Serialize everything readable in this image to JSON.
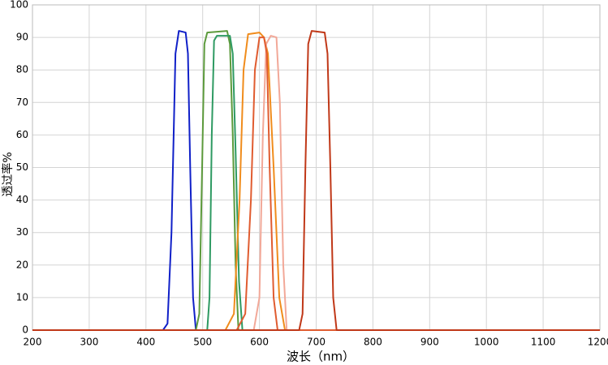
{
  "chart_data": {
    "type": "line",
    "x_label": "波长（nm）",
    "y_label": "透过率%",
    "xlim": [
      200,
      1200
    ],
    "xticks": [
      200,
      300,
      400,
      500,
      600,
      700,
      800,
      900,
      1000,
      1100,
      1200
    ],
    "ylim": [
      0,
      100
    ],
    "yticks": [
      0,
      10,
      20,
      30,
      40,
      50,
      60,
      70,
      80,
      90,
      100
    ],
    "grid": true,
    "series": [
      {
        "color": "#1020c8",
        "x": [
          200,
          430,
          438,
          445,
          452,
          458,
          470,
          474,
          478,
          483,
          488,
          1200
        ],
        "values": [
          0,
          0,
          2,
          30,
          85,
          92,
          91.5,
          85,
          50,
          10,
          0,
          0
        ]
      },
      {
        "color": "#5c9a3c",
        "x": [
          200,
          488,
          494,
          499,
          503,
          508,
          543,
          548,
          553,
          558,
          563,
          1200
        ],
        "values": [
          0,
          0,
          5,
          50,
          88,
          91.5,
          92,
          88,
          60,
          20,
          0,
          0
        ]
      },
      {
        "color": "#2e9a62",
        "x": [
          200,
          508,
          512,
          516,
          520,
          525,
          548,
          553,
          558,
          564,
          570,
          1200
        ],
        "values": [
          0,
          0,
          10,
          60,
          89,
          90.5,
          90.5,
          85,
          55,
          15,
          0,
          0
        ]
      },
      {
        "color": "#f08c1c",
        "x": [
          200,
          540,
          555,
          565,
          572,
          580,
          600,
          608,
          615,
          625,
          635,
          645,
          1200
        ],
        "values": [
          0,
          0,
          5,
          40,
          80,
          91,
          91.5,
          90,
          85,
          50,
          10,
          0,
          0
        ]
      },
      {
        "color": "#f2a898",
        "x": [
          200,
          590,
          600,
          606,
          612,
          620,
          630,
          636,
          642,
          648,
          1200
        ],
        "values": [
          0,
          0,
          10,
          60,
          88,
          90.5,
          90,
          70,
          20,
          0,
          0
        ]
      },
      {
        "color": "#e05c30",
        "x": [
          200,
          560,
          575,
          585,
          592,
          600,
          608,
          613,
          618,
          625,
          632,
          1200
        ],
        "values": [
          0,
          0,
          5,
          40,
          80,
          90,
          90,
          85,
          50,
          10,
          0,
          0
        ]
      },
      {
        "color": "#c03818",
        "x": [
          200,
          670,
          676,
          681,
          686,
          692,
          715,
          720,
          725,
          730,
          736,
          1200
        ],
        "values": [
          0,
          0,
          5,
          50,
          88,
          92,
          91.5,
          85,
          50,
          10,
          0,
          0
        ]
      }
    ]
  }
}
